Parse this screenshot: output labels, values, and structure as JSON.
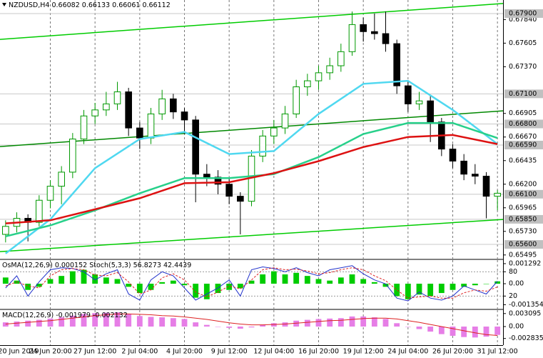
{
  "chart_data": [
    {
      "type": "candlestick",
      "title": "NZDUSD,H4",
      "header_values": [
        0.66082,
        0.66133,
        0.66061,
        0.66112
      ],
      "categories": [
        "20 Jun 2019",
        null,
        null,
        null,
        "24 Jun 20:00",
        null,
        null,
        null,
        "27 Jun 12:00",
        null,
        null,
        null,
        "2 Jul 04:00",
        null,
        null,
        null,
        "4 Jul 20:00",
        null,
        null,
        null,
        "9 Jul 12:00",
        null,
        null,
        null,
        "12 Jul 04:00",
        null,
        null,
        null,
        "16 Jul 20:00",
        null,
        null,
        null,
        "19 Jul 12:00",
        null,
        null,
        null,
        "24 Jul 04:00",
        null,
        null,
        null,
        "26 Jul 20:00",
        null,
        null,
        null,
        "31 Jul 12:00"
      ],
      "open": [
        0.657,
        0.6578,
        0.6586,
        0.6582,
        0.6604,
        0.6618,
        0.6632,
        0.6665,
        0.6688,
        0.6694,
        0.67,
        0.6712,
        0.6676,
        0.6666,
        0.669,
        0.6705,
        0.6692,
        0.6684,
        0.663,
        0.6627,
        0.662,
        0.6608,
        0.6603,
        0.6648,
        0.6668,
        0.6676,
        0.669,
        0.6717,
        0.6723,
        0.6731,
        0.6738,
        0.6752,
        0.6779,
        0.6772,
        0.677,
        0.676,
        0.6718,
        0.67,
        0.6703,
        0.6682,
        0.6655,
        0.6643,
        0.663,
        0.6628,
        0.6608
      ],
      "high": [
        0.6584,
        0.6592,
        0.659,
        0.6609,
        0.6624,
        0.6638,
        0.6671,
        0.6694,
        0.6701,
        0.6712,
        0.6722,
        0.6716,
        0.6682,
        0.6696,
        0.6714,
        0.671,
        0.6696,
        0.6688,
        0.664,
        0.6634,
        0.6626,
        0.6612,
        0.6654,
        0.6674,
        0.6684,
        0.6698,
        0.6724,
        0.673,
        0.6738,
        0.6746,
        0.676,
        0.6792,
        0.6786,
        0.679,
        0.6792,
        0.6764,
        0.6722,
        0.6712,
        0.6708,
        0.6686,
        0.666,
        0.665,
        0.664,
        0.6632,
        0.6614
      ],
      "low": [
        0.6562,
        0.6572,
        0.6563,
        0.6578,
        0.6596,
        0.66,
        0.6626,
        0.666,
        0.668,
        0.6688,
        0.6694,
        0.6668,
        0.6655,
        0.666,
        0.6684,
        0.6685,
        0.667,
        0.6602,
        0.6618,
        0.661,
        0.66,
        0.657,
        0.6598,
        0.6642,
        0.666,
        0.667,
        0.6686,
        0.6708,
        0.6714,
        0.6724,
        0.6732,
        0.6748,
        0.6762,
        0.6764,
        0.6752,
        0.671,
        0.6692,
        0.6694,
        0.6662,
        0.6648,
        0.6636,
        0.6624,
        0.662,
        0.6586,
        0.6594
      ],
      "close": [
        0.6578,
        0.6586,
        0.6582,
        0.6604,
        0.6618,
        0.6632,
        0.6665,
        0.6688,
        0.6694,
        0.67,
        0.6712,
        0.6676,
        0.6666,
        0.669,
        0.6705,
        0.6692,
        0.6684,
        0.663,
        0.6627,
        0.662,
        0.6608,
        0.6603,
        0.6648,
        0.6668,
        0.6676,
        0.669,
        0.6717,
        0.6723,
        0.6731,
        0.6738,
        0.6752,
        0.6779,
        0.6772,
        0.677,
        0.676,
        0.6718,
        0.67,
        0.6703,
        0.6682,
        0.6655,
        0.6643,
        0.663,
        0.6628,
        0.6608,
        0.6611
      ],
      "bull_color": "#009900",
      "bear_color": "#000000",
      "ylim": [
        0.65458,
        0.68035
      ],
      "yticks": [
        {
          "value": 0.6784,
          "label": "0.67840"
        },
        0.67605,
        {
          "value": 0.6737,
          "label": "0.67370"
        },
        0.66905,
        {
          "value": 0.6667,
          "label": "0.66670"
        },
        0.66435,
        {
          "value": 0.662,
          "label": "0.66200"
        },
        0.65965,
        {
          "value": 0.6573,
          "label": "0.65730"
        },
        0.65495
      ],
      "levels": [
        {
          "value": 0.679,
          "label": "0.67900"
        },
        {
          "value": 0.671,
          "label": "0.67100"
        },
        {
          "value": 0.668,
          "label": "0.66800"
        },
        {
          "value": 0.6659,
          "label": "0.66590"
        },
        {
          "value": 0.661,
          "label": "0.66100"
        },
        {
          "value": 0.6585,
          "label": "0.65850"
        },
        {
          "value": 0.656,
          "label": "0.65600"
        }
      ],
      "level_color": "#c8c8c8",
      "trendlines": [
        {
          "start": 0.67643,
          "end": 0.68,
          "color": "#00cc00"
        },
        {
          "start": 0.66575,
          "end": 0.66931,
          "color": "#008800"
        },
        {
          "start": 0.65528,
          "end": 0.65849,
          "color": "#00cc00"
        }
      ],
      "overlays": [
        {
          "color": "#4fd8f0",
          "x": [
            0,
            4,
            8,
            12,
            16,
            20,
            24,
            28,
            32,
            36,
            40,
            44
          ],
          "values": [
            0.6551,
            0.6585,
            0.6636,
            0.6665,
            0.6672,
            0.665,
            0.6653,
            0.669,
            0.672,
            0.6723,
            0.6694,
            0.666
          ]
        },
        {
          "color": "#27d08a",
          "x": [
            0,
            4,
            8,
            12,
            16,
            20,
            24,
            28,
            32,
            36,
            40,
            44
          ],
          "values": [
            0.6568,
            0.6579,
            0.6594,
            0.6611,
            0.6626,
            0.6626,
            0.663,
            0.6647,
            0.667,
            0.6681,
            0.6681,
            0.6666
          ]
        },
        {
          "color": "#dd1111",
          "x": [
            0,
            4,
            8,
            12,
            16,
            20,
            24,
            28,
            32,
            36,
            40,
            44
          ],
          "values": [
            0.6581,
            0.6584,
            0.6595,
            0.6606,
            0.6621,
            0.6622,
            0.6631,
            0.6643,
            0.6657,
            0.6667,
            0.6669,
            0.666
          ]
        }
      ],
      "grid": true
    },
    {
      "type": "bar",
      "series": [
        {
          "name": "OsMA(12,26,9)",
          "mark": "bar",
          "color": "#00cc00",
          "values": [
            0.0004,
            0.0002,
            -0.0004,
            -0.0002,
            0.0003,
            0.0005,
            0.0008,
            0.0009,
            0.0006,
            0.0004,
            0.0003,
            -0.0002,
            -0.0006,
            -0.0004,
            0.0001,
            0.0002,
            -0.0001,
            -0.0009,
            -0.001,
            -0.0006,
            -0.0004,
            -0.0003,
            0.0002,
            0.0006,
            0.0008,
            0.0006,
            0.0007,
            0.0005,
            0.0003,
            0.0002,
            0.0004,
            0.0006,
            0.0003,
            0.0001,
            -0.0002,
            -0.0008,
            -0.001,
            -0.0007,
            -0.0008,
            -0.0006,
            -0.0004,
            -0.0002,
            -0.0001,
            0,
            0.000152
          ]
        },
        {
          "name": "Stoch(5,3,3)",
          "mark": "line",
          "axis": "y2",
          "color": "#2233cc",
          "values": [
            40,
            70,
            20,
            55,
            85,
            90,
            88,
            80,
            60,
            75,
            85,
            25,
            10,
            60,
            80,
            70,
            40,
            10,
            25,
            40,
            60,
            20,
            85,
            92,
            88,
            80,
            90,
            78,
            70,
            85,
            90,
            95,
            75,
            60,
            50,
            15,
            8,
            30,
            15,
            10,
            20,
            45,
            35,
            25,
            56.8273
          ]
        },
        {
          "mark": "line",
          "axis": "y2",
          "dashed": true,
          "color": "#dd2222",
          "values": [
            45,
            55,
            45,
            40,
            70,
            85,
            88,
            85,
            72,
            70,
            78,
            55,
            25,
            35,
            65,
            75,
            60,
            30,
            18,
            30,
            45,
            38,
            60,
            85,
            90,
            85,
            86,
            82,
            75,
            78,
            85,
            90,
            85,
            70,
            58,
            35,
            15,
            18,
            20,
            15,
            15,
            28,
            35,
            32,
            42.4439
          ]
        }
      ],
      "ylim": [
        -0.00161,
        0.00152
      ],
      "yticks": [
        0.001292,
        {
          "value": 0,
          "label": "0.00"
        },
        -0.001354
      ],
      "y2lim": [
        -11.2,
        108.8
      ],
      "y2ticks": [
        80,
        20
      ],
      "grid": true
    },
    {
      "type": "bar",
      "series": [
        {
          "name": "MACD(12,26,9)",
          "mark": "bar",
          "color": "#e67ee6",
          "values": [
            0.001,
            0.0012,
            0.0014,
            0.0016,
            0.0019,
            0.0022,
            0.0026,
            0.003,
            0.0032,
            0.0033,
            0.0034,
            0.003,
            0.0025,
            0.0023,
            0.0022,
            0.002,
            0.0018,
            0.001,
            0.0004,
            0,
            -0.0003,
            -0.0005,
            -0.0002,
            0.0004,
            0.0008,
            0.001,
            0.0014,
            0.0016,
            0.0018,
            0.0019,
            0.002,
            0.0024,
            0.0024,
            0.0022,
            0.0018,
            0.0008,
            0,
            -0.0006,
            -0.0012,
            -0.0018,
            -0.0022,
            -0.0025,
            -0.0026,
            -0.0024,
            -0.001979
          ]
        },
        {
          "mark": "line",
          "color": "#dd2222",
          "values": [
            0.0006,
            0.0008,
            0.001,
            0.0012,
            0.0014,
            0.0017,
            0.002,
            0.0023,
            0.0026,
            0.0028,
            0.003,
            0.003,
            0.0029,
            0.0028,
            0.0026,
            0.0025,
            0.0023,
            0.002,
            0.0017,
            0.0013,
            0.0009,
            0.0006,
            0.0004,
            0.0004,
            0.0005,
            0.0006,
            0.0008,
            0.001,
            0.0012,
            0.0014,
            0.0015,
            0.0017,
            0.0019,
            0.002,
            0.002,
            0.0018,
            0.0014,
            0.001,
            0.0005,
            0,
            -0.0005,
            -0.001,
            -0.0015,
            -0.0019,
            -0.002132
          ]
        }
      ],
      "ylim": [
        -0.00442,
        0.00391
      ],
      "yticks": [
        0.003095,
        {
          "value": 0,
          "label": "0.00"
        },
        -0.002835
      ],
      "grid": true
    }
  ]
}
